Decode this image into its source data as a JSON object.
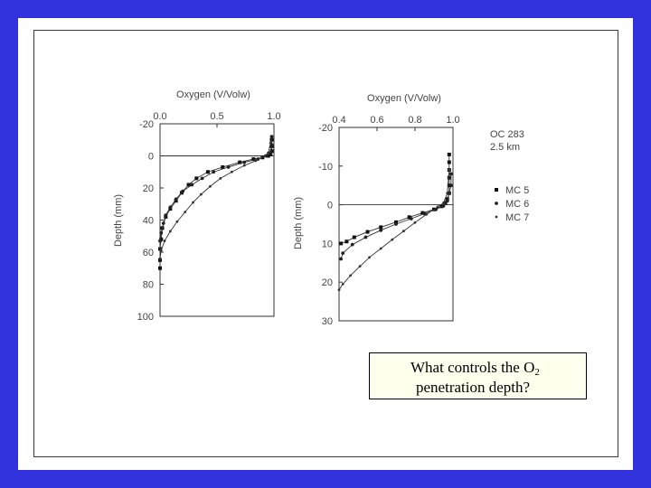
{
  "caption": {
    "line1_prefix": "What controls the O",
    "line1_sub": "2",
    "line2": "penetration depth?"
  },
  "chart_data": [
    {
      "type": "scatter",
      "title": "Oxygen (V/Volw)",
      "xlabel": "Oxygen (V/Volw)",
      "ylabel": "Depth (mm)",
      "xlim": [
        0.0,
        1.0
      ],
      "ylim": [
        -20,
        100
      ],
      "x_ticks": [
        "0.0",
        "0.5",
        "1.0"
      ],
      "y_ticks": [
        "-20",
        "0",
        "20",
        "40",
        "60",
        "80",
        "100"
      ],
      "reference_line_y": 0,
      "series": [
        {
          "marker": "square",
          "points": [
            [
              0.98,
              -10
            ],
            [
              0.98,
              -6
            ],
            [
              0.98,
              -3
            ],
            [
              0.97,
              -1
            ],
            [
              0.95,
              0
            ],
            [
              0.9,
              1
            ],
            [
              0.82,
              2
            ],
            [
              0.7,
              4
            ],
            [
              0.55,
              7
            ],
            [
              0.42,
              10
            ],
            [
              0.32,
              14
            ],
            [
              0.25,
              18
            ],
            [
              0.19,
              23
            ],
            [
              0.14,
              28
            ],
            [
              0.09,
              33
            ],
            [
              0.05,
              38
            ],
            [
              0.02,
              45
            ],
            [
              0.01,
              52
            ],
            [
              0.0,
              58
            ],
            [
              0.0,
              65
            ],
            [
              0.0,
              70
            ]
          ]
        },
        {
          "marker": "circle",
          "points": [
            [
              0.98,
              -12
            ],
            [
              0.98,
              -7
            ],
            [
              0.97,
              -2
            ],
            [
              0.93,
              0
            ],
            [
              0.86,
              2
            ],
            [
              0.74,
              4
            ],
            [
              0.6,
              7
            ],
            [
              0.47,
              10
            ],
            [
              0.37,
              14
            ],
            [
              0.28,
              18
            ],
            [
              0.2,
              22
            ],
            [
              0.14,
              27
            ],
            [
              0.09,
              32
            ],
            [
              0.05,
              37
            ],
            [
              0.03,
              42
            ],
            [
              0.01,
              48
            ],
            [
              0.0,
              53
            ],
            [
              0.0,
              58
            ]
          ]
        },
        {
          "marker": "dot",
          "points": [
            [
              0.97,
              -8
            ],
            [
              0.95,
              -2
            ],
            [
              0.92,
              0
            ],
            [
              0.84,
              3
            ],
            [
              0.74,
              6
            ],
            [
              0.63,
              10
            ],
            [
              0.53,
              14
            ],
            [
              0.44,
              19
            ],
            [
              0.36,
              24
            ],
            [
              0.29,
              29
            ],
            [
              0.22,
              35
            ],
            [
              0.15,
              41
            ],
            [
              0.09,
              47
            ],
            [
              0.04,
              53
            ],
            [
              0.01,
              59
            ],
            [
              0.0,
              64
            ]
          ]
        }
      ]
    },
    {
      "type": "scatter",
      "title": "Oxygen (V/Volw)",
      "xlabel": "Oxygen (V/Volw)",
      "ylabel": "Depth (mm)",
      "xlim": [
        0.4,
        1.0
      ],
      "ylim": [
        -20,
        30
      ],
      "x_ticks": [
        "0.4",
        "0.6",
        "0.8",
        "1.0"
      ],
      "y_ticks": [
        "-20",
        "-10",
        "0",
        "10",
        "20",
        "30"
      ],
      "reference_line_y": 0,
      "annotation": [
        "OC 283",
        "2.5 km"
      ],
      "legend": {
        "placement": "right",
        "entries": [
          "MC 5",
          "MC 6",
          "MC 7"
        ]
      },
      "series": [
        {
          "name": "MC 5",
          "marker": "square",
          "points": [
            [
              0.98,
              -13
            ],
            [
              0.98,
              -11
            ],
            [
              0.98,
              -9
            ],
            [
              0.98,
              -7
            ],
            [
              0.98,
              -5
            ],
            [
              0.98,
              -3
            ],
            [
              0.97,
              -1.5
            ],
            [
              0.96,
              -0.5
            ],
            [
              0.94,
              0.4
            ],
            [
              0.9,
              1.2
            ],
            [
              0.84,
              2.1
            ],
            [
              0.77,
              3.2
            ],
            [
              0.7,
              4.5
            ],
            [
              0.62,
              5.8
            ],
            [
              0.55,
              7
            ],
            [
              0.48,
              8.4
            ],
            [
              0.44,
              9.5
            ],
            [
              0.41,
              10
            ]
          ]
        },
        {
          "name": "MC 6",
          "marker": "circle",
          "points": [
            [
              0.99,
              -8
            ],
            [
              0.99,
              -5
            ],
            [
              0.98,
              -3
            ],
            [
              0.97,
              -1
            ],
            [
              0.95,
              0.3
            ],
            [
              0.91,
              1.2
            ],
            [
              0.85,
              2.3
            ],
            [
              0.78,
              3.6
            ],
            [
              0.7,
              5
            ],
            [
              0.62,
              6.6
            ],
            [
              0.54,
              8.4
            ],
            [
              0.47,
              10.3
            ],
            [
              0.42,
              12.5
            ],
            [
              0.41,
              14
            ]
          ]
        },
        {
          "name": "MC 7",
          "marker": "dot",
          "points": [
            [
              0.98,
              -9
            ],
            [
              0.97,
              -3
            ],
            [
              0.95,
              -0.5
            ],
            [
              0.92,
              0.5
            ],
            [
              0.86,
              2.5
            ],
            [
              0.8,
              4.6
            ],
            [
              0.74,
              6.8
            ],
            [
              0.68,
              9
            ],
            [
              0.62,
              11.3
            ],
            [
              0.56,
              13.6
            ],
            [
              0.51,
              15.9
            ],
            [
              0.46,
              18.3
            ],
            [
              0.42,
              20.5
            ],
            [
              0.4,
              22
            ]
          ]
        }
      ]
    }
  ]
}
